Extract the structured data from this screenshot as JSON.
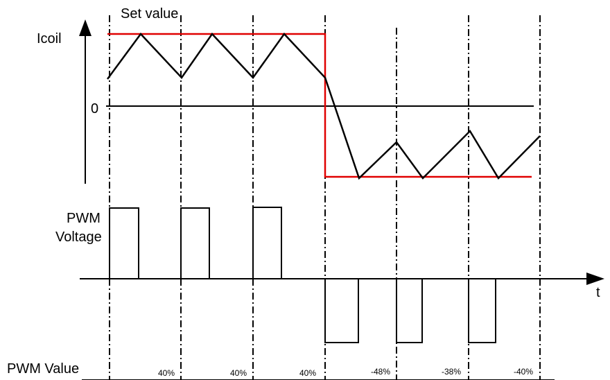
{
  "diagram": {
    "set_value_label": "Set value",
    "icoil_label": "Icoil",
    "zero_label": "0",
    "pwm_label_line1": "PWM",
    "pwm_label_line2": "Voltage",
    "t_label": "t",
    "pwm_value_label": "PWM Value",
    "pwm_values": [
      "40%",
      "40%",
      "40%",
      "-48%",
      "-38%",
      "-40%"
    ]
  },
  "colors": {
    "set_value_line": "#e00000",
    "traces": "#000000",
    "background": "#ffffff"
  }
}
